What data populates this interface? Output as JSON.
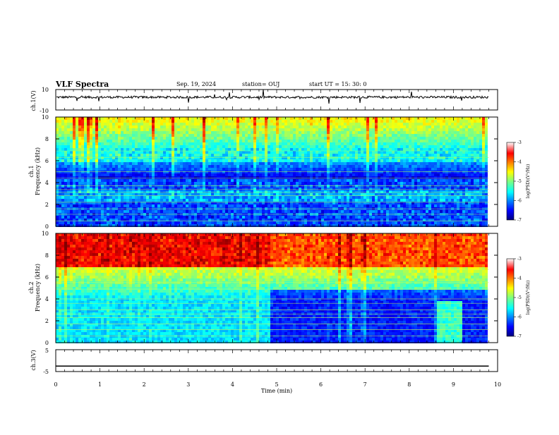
{
  "header": {
    "title": "VLF Spectra",
    "date": "Sep. 19, 2024",
    "station": "station= OUJ",
    "start": "start  UT  =   15: 30: 0"
  },
  "chart_data": [
    {
      "type": "line",
      "panel": "ch1-waveform",
      "ylabel": "ch.1(V)",
      "ylim": [
        -10,
        10
      ],
      "y_tick_labels": [
        "10",
        "-10"
      ],
      "baseline_v": 2.5,
      "description_values": "noisy waveform around 2.5 V with sparse spikes"
    },
    {
      "type": "heatmap",
      "panel": "ch1-spectrogram",
      "ylabel": "ch.1\nFrequency  (kHz)",
      "ylim": [
        0,
        10
      ],
      "y_ticks": [
        0,
        2,
        4,
        6,
        8,
        10
      ],
      "colorbar": {
        "label": "log(PSD)(V²/Hz)",
        "ticks": [
          -3,
          -4,
          -5,
          -6,
          -7
        ],
        "range": [
          -7,
          -3
        ]
      },
      "x_extent_min": [
        0,
        9.8
      ]
    },
    {
      "type": "heatmap",
      "panel": "ch2-spectrogram",
      "ylabel": "ch.2\nFrequency  (kHz)",
      "ylim": [
        0,
        10
      ],
      "y_ticks": [
        0,
        2,
        4,
        6,
        8,
        10
      ],
      "colorbar": {
        "label": "log(PSD)(V²/Hz)",
        "ticks": [
          -3,
          -4,
          -5,
          -6,
          -7
        ],
        "range": [
          -7,
          -3
        ]
      },
      "x_extent_min": [
        0,
        9.8
      ]
    },
    {
      "type": "line",
      "panel": "ch3-waveform",
      "ylabel": "ch.3(V)",
      "ylim": [
        -5,
        5
      ],
      "y_tick_labels": [
        "5",
        "-5"
      ],
      "x": [
        0,
        9.8
      ],
      "y": [
        -2.5,
        -2.5
      ]
    }
  ],
  "x_axis": {
    "label": "Time  (min)",
    "range": [
      0,
      10
    ],
    "ticks": [
      "0",
      "1",
      "2",
      "3",
      "4",
      "5",
      "6",
      "7",
      "8",
      "9",
      "10"
    ]
  }
}
